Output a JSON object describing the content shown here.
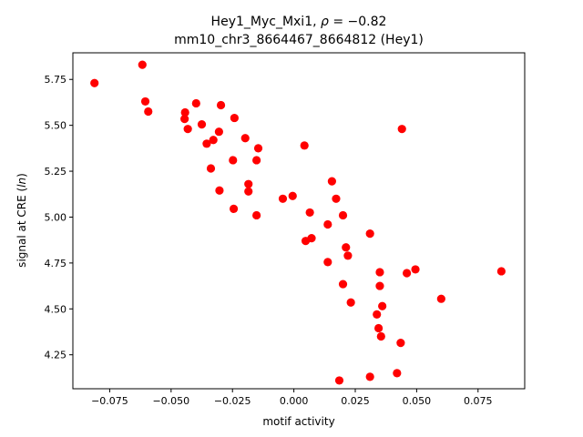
{
  "chart_data": {
    "type": "scatter",
    "title_line1": "Hey1_Myc_Mxi1, ",
    "title_rho_symbol": "ρ",
    "title_rho_value": " = −0.82",
    "title_line2": "mm10_chr3_8664467_8664812 (Hey1)",
    "xlabel": "motif activity",
    "ylabel_prefix": "signal at CRE (",
    "ylabel_ln": "ln",
    "ylabel_suffix": ")",
    "xlim": [
      -0.09,
      0.094
    ],
    "ylim": [
      4.065,
      5.895
    ],
    "xticks": [
      -0.075,
      -0.05,
      -0.025,
      0.0,
      0.025,
      0.05,
      0.075
    ],
    "xtick_labels": [
      "−0.075",
      "−0.050",
      "−0.025",
      "0.000",
      "0.025",
      "0.050",
      "0.075"
    ],
    "yticks": [
      4.25,
      4.5,
      4.75,
      5.0,
      5.25,
      5.5,
      5.75
    ],
    "ytick_labels": [
      "4.25",
      "4.50",
      "4.75",
      "5.00",
      "5.25",
      "5.50",
      "5.75"
    ],
    "marker_color": "#ff0000",
    "points": [
      [
        -0.0812,
        5.73
      ],
      [
        -0.0617,
        5.83
      ],
      [
        -0.0605,
        5.63
      ],
      [
        -0.0593,
        5.575
      ],
      [
        -0.0443,
        5.57
      ],
      [
        -0.0445,
        5.535
      ],
      [
        -0.0432,
        5.48
      ],
      [
        -0.0398,
        5.62
      ],
      [
        -0.0375,
        5.505
      ],
      [
        -0.0355,
        5.4
      ],
      [
        -0.0328,
        5.42
      ],
      [
        -0.0338,
        5.265
      ],
      [
        -0.0305,
        5.465
      ],
      [
        -0.0297,
        5.61
      ],
      [
        -0.0242,
        5.54
      ],
      [
        -0.0303,
        5.145
      ],
      [
        -0.0248,
        5.31
      ],
      [
        -0.0245,
        5.045
      ],
      [
        -0.0198,
        5.43
      ],
      [
        -0.0185,
        5.18
      ],
      [
        -0.0185,
        5.14
      ],
      [
        -0.0152,
        5.31
      ],
      [
        -0.0145,
        5.375
      ],
      [
        -0.0152,
        5.01
      ],
      [
        -0.0045,
        5.1
      ],
      [
        -0.0005,
        5.115
      ],
      [
        0.0043,
        5.39
      ],
      [
        0.0048,
        4.87
      ],
      [
        0.0065,
        5.025
      ],
      [
        0.0072,
        4.885
      ],
      [
        0.0138,
        4.96
      ],
      [
        0.0138,
        4.755
      ],
      [
        0.0155,
        5.195
      ],
      [
        0.0172,
        5.1
      ],
      [
        0.0185,
        4.11
      ],
      [
        0.02,
        5.01
      ],
      [
        0.02,
        4.635
      ],
      [
        0.0212,
        4.835
      ],
      [
        0.022,
        4.79
      ],
      [
        0.0232,
        4.535
      ],
      [
        0.031,
        4.91
      ],
      [
        0.031,
        4.13
      ],
      [
        0.0338,
        4.47
      ],
      [
        0.0345,
        4.395
      ],
      [
        0.035,
        4.7
      ],
      [
        0.035,
        4.625
      ],
      [
        0.0355,
        4.35
      ],
      [
        0.036,
        4.515
      ],
      [
        0.042,
        4.15
      ],
      [
        0.0435,
        4.315
      ],
      [
        0.044,
        5.48
      ],
      [
        0.046,
        4.695
      ],
      [
        0.0495,
        4.715
      ],
      [
        0.06,
        4.555
      ],
      [
        0.0845,
        4.705
      ]
    ]
  }
}
